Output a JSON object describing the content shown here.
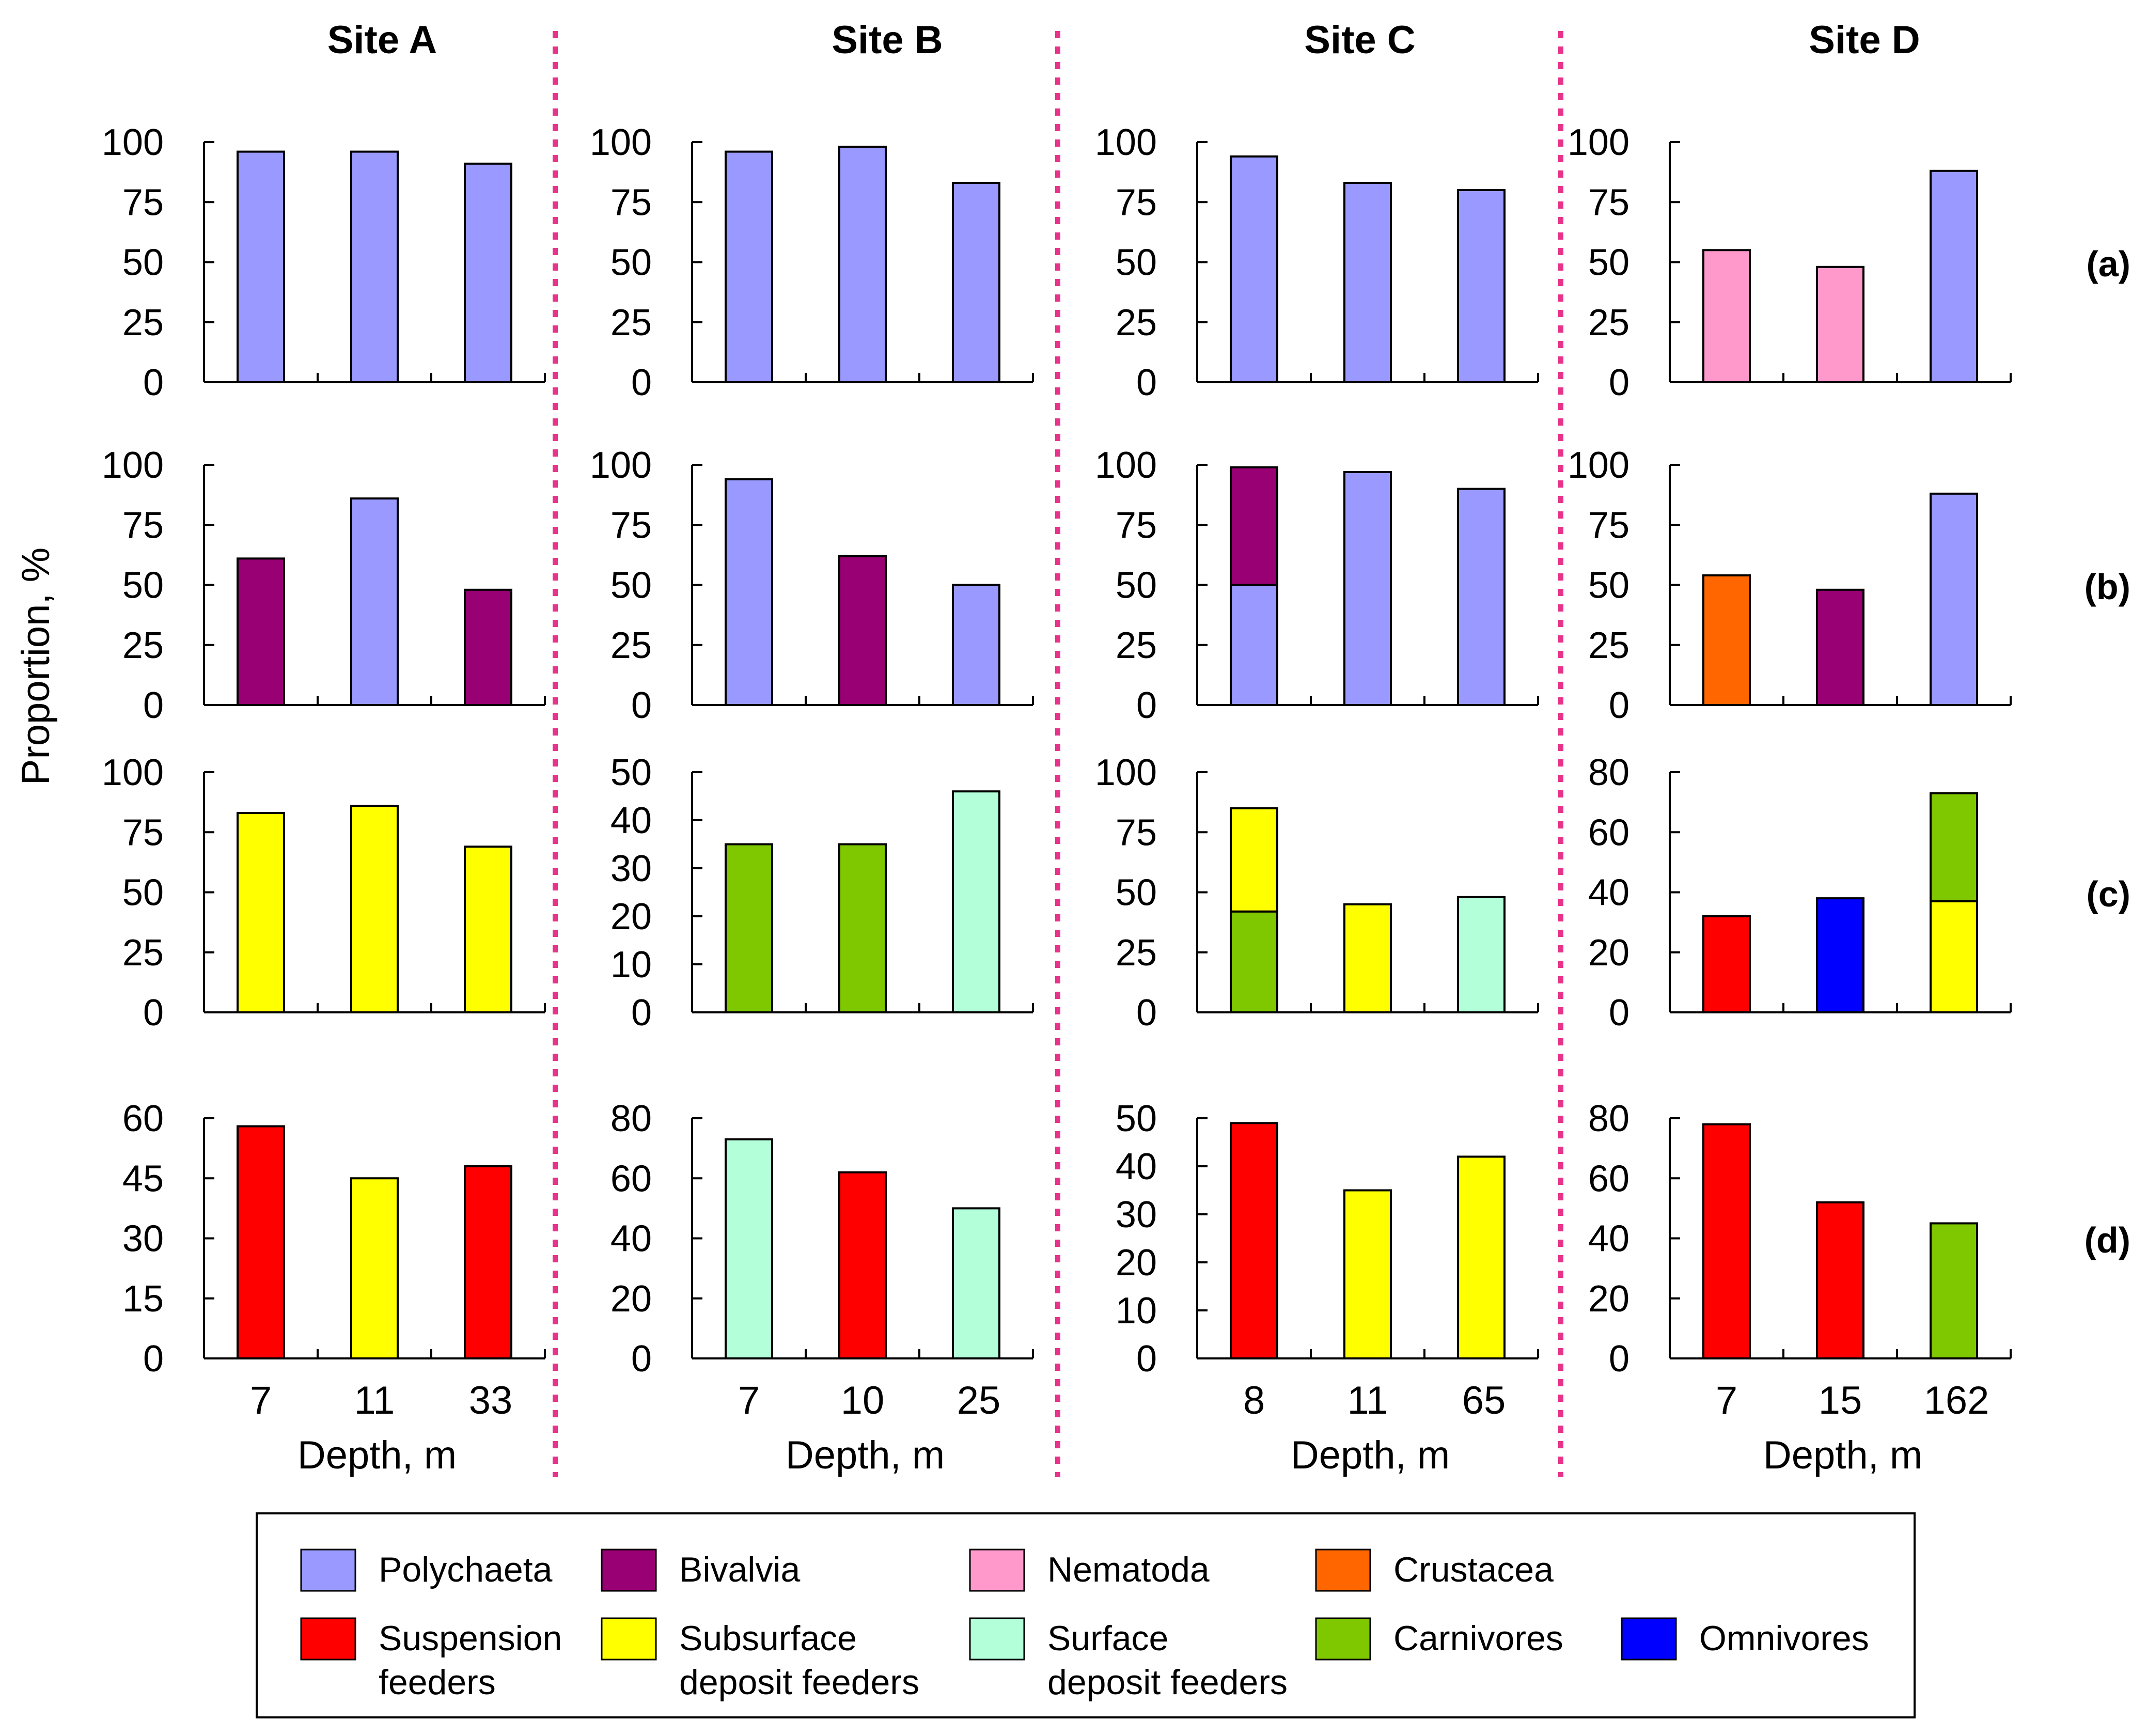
{
  "chart_data": {
    "type": "bar",
    "sites": [
      "Site A",
      "Site B",
      "Site C",
      "Site D"
    ],
    "rows": [
      "(a)",
      "(b)",
      "(c)",
      "(d)"
    ],
    "ylabel": "Proportion, %",
    "xlabel": "Depth, m",
    "depths": [
      [
        "7",
        "11",
        "33"
      ],
      [
        "7",
        "10",
        "25"
      ],
      [
        "8",
        "11",
        "65"
      ],
      [
        "7",
        "15",
        "162"
      ]
    ],
    "categories": {
      "polychaeta": "#9999FF",
      "bivalvia": "#990073",
      "nematoda": "#FF99CC",
      "crustacea": "#FF6600",
      "suspension": "#FF0000",
      "subsurface": "#FFFF00",
      "surface": "#B3FFD9",
      "carnivores": "#7FC800",
      "omnivores": "#0000FF"
    },
    "panels": [
      [
        {
          "ylim": [
            0,
            100
          ],
          "ticks": [
            "0",
            "25",
            "50",
            "75",
            "100"
          ],
          "bars": [
            [
              [
                "polychaeta",
                96
              ]
            ],
            [
              [
                "polychaeta",
                96
              ]
            ],
            [
              [
                "polychaeta",
                91
              ]
            ]
          ]
        },
        {
          "ylim": [
            0,
            100
          ],
          "ticks": [
            "0",
            "25",
            "50",
            "75",
            "100"
          ],
          "bars": [
            [
              [
                "polychaeta",
                96
              ]
            ],
            [
              [
                "polychaeta",
                98
              ]
            ],
            [
              [
                "polychaeta",
                83
              ]
            ]
          ]
        },
        {
          "ylim": [
            0,
            100
          ],
          "ticks": [
            "0",
            "25",
            "50",
            "75",
            "100"
          ],
          "bars": [
            [
              [
                "polychaeta",
                94
              ]
            ],
            [
              [
                "polychaeta",
                83
              ]
            ],
            [
              [
                "polychaeta",
                80
              ]
            ]
          ]
        },
        {
          "ylim": [
            0,
            100
          ],
          "ticks": [
            "0",
            "25",
            "50",
            "75",
            "100"
          ],
          "bars": [
            [
              [
                "nematoda",
                55
              ]
            ],
            [
              [
                "nematoda",
                48
              ]
            ],
            [
              [
                "polychaeta",
                88
              ]
            ]
          ]
        }
      ],
      [
        {
          "ylim": [
            0,
            100
          ],
          "ticks": [
            "0",
            "25",
            "50",
            "75",
            "100"
          ],
          "bars": [
            [
              [
                "bivalvia",
                61
              ]
            ],
            [
              [
                "polychaeta",
                86
              ]
            ],
            [
              [
                "bivalvia",
                48
              ]
            ]
          ]
        },
        {
          "ylim": [
            0,
            100
          ],
          "ticks": [
            "0",
            "25",
            "50",
            "75",
            "100"
          ],
          "bars": [
            [
              [
                "polychaeta",
                94
              ]
            ],
            [
              [
                "bivalvia",
                62
              ]
            ],
            [
              [
                "polychaeta",
                50
              ]
            ]
          ]
        },
        {
          "ylim": [
            0,
            100
          ],
          "ticks": [
            "0",
            "25",
            "50",
            "75",
            "100"
          ],
          "bars": [
            [
              [
                "polychaeta",
                50
              ],
              [
                "bivalvia",
                49
              ]
            ],
            [
              [
                "polychaeta",
                97
              ]
            ],
            [
              [
                "polychaeta",
                90
              ]
            ]
          ]
        },
        {
          "ylim": [
            0,
            100
          ],
          "ticks": [
            "0",
            "25",
            "50",
            "75",
            "100"
          ],
          "bars": [
            [
              [
                "crustacea",
                54
              ]
            ],
            [
              [
                "bivalvia",
                48
              ]
            ],
            [
              [
                "polychaeta",
                88
              ]
            ]
          ]
        }
      ],
      [
        {
          "ylim": [
            0,
            100
          ],
          "ticks": [
            "0",
            "25",
            "50",
            "75",
            "100"
          ],
          "bars": [
            [
              [
                "subsurface",
                83
              ]
            ],
            [
              [
                "subsurface",
                86
              ]
            ],
            [
              [
                "subsurface",
                69
              ]
            ]
          ]
        },
        {
          "ylim": [
            0,
            50
          ],
          "ticks": [
            "0",
            "10",
            "20",
            "30",
            "40",
            "50"
          ],
          "bars": [
            [
              [
                "carnivores",
                35
              ]
            ],
            [
              [
                "carnivores",
                35
              ]
            ],
            [
              [
                "surface",
                46
              ]
            ]
          ]
        },
        {
          "ylim": [
            0,
            100
          ],
          "ticks": [
            "0",
            "25",
            "50",
            "75",
            "100"
          ],
          "bars": [
            [
              [
                "carnivores",
                42
              ],
              [
                "subsurface",
                43
              ]
            ],
            [
              [
                "subsurface",
                45
              ]
            ],
            [
              [
                "surface",
                48
              ]
            ]
          ]
        },
        {
          "ylim": [
            0,
            80
          ],
          "ticks": [
            "0",
            "20",
            "40",
            "60",
            "80"
          ],
          "bars": [
            [
              [
                "suspension",
                32
              ]
            ],
            [
              [
                "omnivores",
                38
              ]
            ],
            [
              [
                "subsurface",
                37
              ],
              [
                "carnivores",
                36
              ]
            ]
          ]
        }
      ],
      [
        {
          "ylim": [
            0,
            60
          ],
          "ticks": [
            "0",
            "15",
            "30",
            "45",
            "60"
          ],
          "bars": [
            [
              [
                "suspension",
                58
              ]
            ],
            [
              [
                "subsurface",
                45
              ]
            ],
            [
              [
                "suspension",
                48
              ]
            ]
          ]
        },
        {
          "ylim": [
            0,
            80
          ],
          "ticks": [
            "0",
            "20",
            "40",
            "60",
            "80"
          ],
          "bars": [
            [
              [
                "surface",
                73
              ]
            ],
            [
              [
                "suspension",
                62
              ]
            ],
            [
              [
                "surface",
                50
              ]
            ]
          ]
        },
        {
          "ylim": [
            0,
            50
          ],
          "ticks": [
            "0",
            "10",
            "20",
            "30",
            "40",
            "50"
          ],
          "bars": [
            [
              [
                "suspension",
                49
              ]
            ],
            [
              [
                "subsurface",
                35
              ]
            ],
            [
              [
                "subsurface",
                42
              ]
            ]
          ]
        },
        {
          "ylim": [
            0,
            80
          ],
          "ticks": [
            "0",
            "20",
            "40",
            "60",
            "80"
          ],
          "bars": [
            [
              [
                "suspension",
                78
              ]
            ],
            [
              [
                "suspension",
                52
              ]
            ],
            [
              [
                "carnivores",
                45
              ]
            ]
          ]
        }
      ]
    ],
    "legend": [
      {
        "key": "polychaeta",
        "lines": [
          "Polychaeta"
        ]
      },
      {
        "key": "bivalvia",
        "lines": [
          "Bivalvia"
        ]
      },
      {
        "key": "nematoda",
        "lines": [
          "Nematoda"
        ]
      },
      {
        "key": "crustacea",
        "lines": [
          "Crustacea"
        ]
      },
      {
        "key": "suspension",
        "lines": [
          "Suspension",
          "feeders"
        ]
      },
      {
        "key": "subsurface",
        "lines": [
          "Subsurface",
          "deposit feeders"
        ]
      },
      {
        "key": "surface",
        "lines": [
          "Surface",
          "deposit feeders"
        ]
      },
      {
        "key": "carnivores",
        "lines": [
          "Carnivores"
        ]
      },
      {
        "key": "omnivores",
        "lines": [
          "Omnivores"
        ]
      }
    ]
  }
}
